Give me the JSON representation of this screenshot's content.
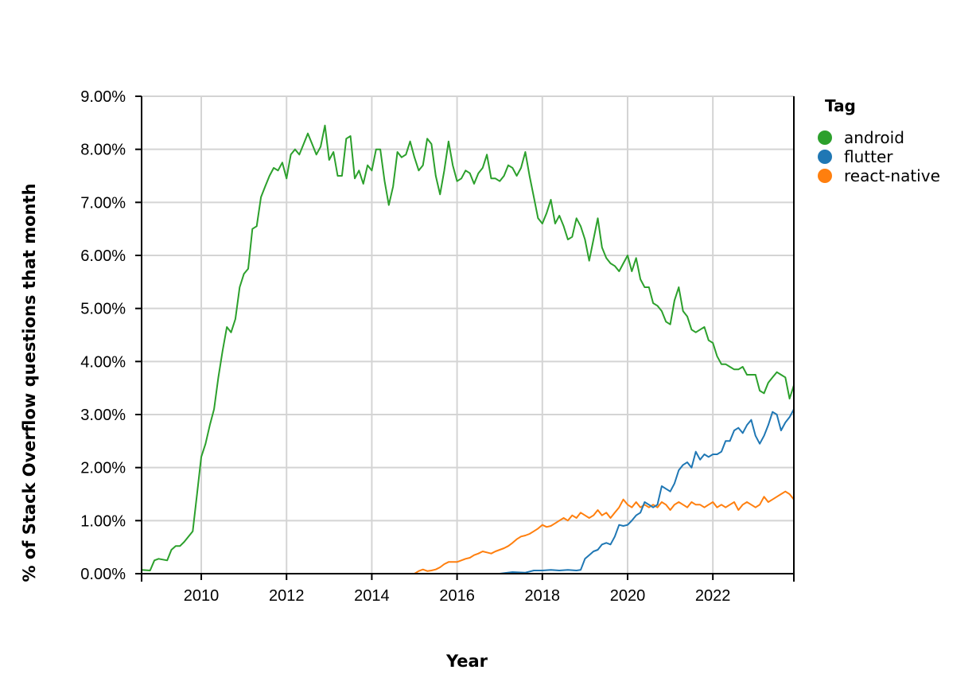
{
  "chart_data": {
    "type": "line",
    "title": "",
    "xlabel": "Year",
    "ylabel": "% of Stack Overflow questions that month",
    "xlim": [
      2008.6,
      2023.9
    ],
    "ylim": [
      0,
      9
    ],
    "x_ticks": [
      2010,
      2012,
      2014,
      2016,
      2018,
      2020,
      2022
    ],
    "x_tick_labels": [
      "2010",
      "2012",
      "2014",
      "2016",
      "2018",
      "2020",
      "2022"
    ],
    "y_ticks": [
      0,
      1,
      2,
      3,
      4,
      5,
      6,
      7,
      8,
      9
    ],
    "y_tick_labels": [
      "0.00%",
      "1.00%",
      "2.00%",
      "3.00%",
      "4.00%",
      "5.00%",
      "6.00%",
      "7.00%",
      "8.00%",
      "9.00%"
    ],
    "grid": true,
    "legend": {
      "title": "Tag",
      "placement": "right"
    },
    "series": [
      {
        "name": "android",
        "color": "#2ca02c",
        "points": [
          [
            2008.6,
            0.07
          ],
          [
            2008.8,
            0.06
          ],
          [
            2008.9,
            0.25
          ],
          [
            2009.0,
            0.28
          ],
          [
            2009.2,
            0.25
          ],
          [
            2009.3,
            0.45
          ],
          [
            2009.4,
            0.52
          ],
          [
            2009.5,
            0.52
          ],
          [
            2009.6,
            0.6
          ],
          [
            2009.8,
            0.8
          ],
          [
            2009.9,
            1.5
          ],
          [
            2010.0,
            2.2
          ],
          [
            2010.1,
            2.45
          ],
          [
            2010.2,
            2.8
          ],
          [
            2010.3,
            3.1
          ],
          [
            2010.4,
            3.7
          ],
          [
            2010.5,
            4.2
          ],
          [
            2010.6,
            4.65
          ],
          [
            2010.7,
            4.55
          ],
          [
            2010.8,
            4.8
          ],
          [
            2010.9,
            5.4
          ],
          [
            2011.0,
            5.65
          ],
          [
            2011.1,
            5.75
          ],
          [
            2011.2,
            6.5
          ],
          [
            2011.3,
            6.55
          ],
          [
            2011.4,
            7.1
          ],
          [
            2011.5,
            7.3
          ],
          [
            2011.6,
            7.5
          ],
          [
            2011.7,
            7.65
          ],
          [
            2011.8,
            7.6
          ],
          [
            2011.9,
            7.75
          ],
          [
            2012.0,
            7.45
          ],
          [
            2012.1,
            7.9
          ],
          [
            2012.2,
            8.0
          ],
          [
            2012.3,
            7.9
          ],
          [
            2012.4,
            8.1
          ],
          [
            2012.5,
            8.3
          ],
          [
            2012.6,
            8.1
          ],
          [
            2012.7,
            7.9
          ],
          [
            2012.8,
            8.05
          ],
          [
            2012.9,
            8.45
          ],
          [
            2013.0,
            7.8
          ],
          [
            2013.1,
            7.95
          ],
          [
            2013.2,
            7.5
          ],
          [
            2013.3,
            7.5
          ],
          [
            2013.4,
            8.2
          ],
          [
            2013.5,
            8.25
          ],
          [
            2013.6,
            7.45
          ],
          [
            2013.7,
            7.6
          ],
          [
            2013.8,
            7.35
          ],
          [
            2013.9,
            7.7
          ],
          [
            2014.0,
            7.6
          ],
          [
            2014.1,
            8.0
          ],
          [
            2014.2,
            8.0
          ],
          [
            2014.3,
            7.4
          ],
          [
            2014.4,
            6.95
          ],
          [
            2014.5,
            7.3
          ],
          [
            2014.6,
            7.95
          ],
          [
            2014.7,
            7.85
          ],
          [
            2014.8,
            7.9
          ],
          [
            2014.9,
            8.15
          ],
          [
            2015.0,
            7.85
          ],
          [
            2015.1,
            7.6
          ],
          [
            2015.2,
            7.7
          ],
          [
            2015.3,
            8.2
          ],
          [
            2015.4,
            8.1
          ],
          [
            2015.5,
            7.5
          ],
          [
            2015.6,
            7.15
          ],
          [
            2015.7,
            7.6
          ],
          [
            2015.8,
            8.15
          ],
          [
            2015.9,
            7.7
          ],
          [
            2016.0,
            7.4
          ],
          [
            2016.1,
            7.45
          ],
          [
            2016.2,
            7.6
          ],
          [
            2016.3,
            7.55
          ],
          [
            2016.4,
            7.35
          ],
          [
            2016.5,
            7.55
          ],
          [
            2016.6,
            7.65
          ],
          [
            2016.7,
            7.9
          ],
          [
            2016.8,
            7.45
          ],
          [
            2016.9,
            7.45
          ],
          [
            2017.0,
            7.4
          ],
          [
            2017.1,
            7.5
          ],
          [
            2017.2,
            7.7
          ],
          [
            2017.3,
            7.65
          ],
          [
            2017.4,
            7.5
          ],
          [
            2017.5,
            7.65
          ],
          [
            2017.6,
            7.95
          ],
          [
            2017.7,
            7.5
          ],
          [
            2017.8,
            7.1
          ],
          [
            2017.9,
            6.7
          ],
          [
            2018.0,
            6.6
          ],
          [
            2018.1,
            6.8
          ],
          [
            2018.2,
            7.05
          ],
          [
            2018.3,
            6.6
          ],
          [
            2018.4,
            6.75
          ],
          [
            2018.5,
            6.55
          ],
          [
            2018.6,
            6.3
          ],
          [
            2018.7,
            6.35
          ],
          [
            2018.8,
            6.7
          ],
          [
            2018.9,
            6.55
          ],
          [
            2019.0,
            6.3
          ],
          [
            2019.1,
            5.9
          ],
          [
            2019.2,
            6.3
          ],
          [
            2019.3,
            6.7
          ],
          [
            2019.4,
            6.15
          ],
          [
            2019.5,
            5.95
          ],
          [
            2019.6,
            5.85
          ],
          [
            2019.7,
            5.8
          ],
          [
            2019.8,
            5.7
          ],
          [
            2019.9,
            5.85
          ],
          [
            2020.0,
            6.0
          ],
          [
            2020.1,
            5.7
          ],
          [
            2020.2,
            5.95
          ],
          [
            2020.3,
            5.55
          ],
          [
            2020.4,
            5.4
          ],
          [
            2020.5,
            5.4
          ],
          [
            2020.6,
            5.1
          ],
          [
            2020.7,
            5.05
          ],
          [
            2020.8,
            4.95
          ],
          [
            2020.9,
            4.75
          ],
          [
            2021.0,
            4.7
          ],
          [
            2021.1,
            5.15
          ],
          [
            2021.2,
            5.4
          ],
          [
            2021.3,
            4.95
          ],
          [
            2021.4,
            4.85
          ],
          [
            2021.5,
            4.6
          ],
          [
            2021.6,
            4.55
          ],
          [
            2021.7,
            4.6
          ],
          [
            2021.8,
            4.65
          ],
          [
            2021.9,
            4.4
          ],
          [
            2022.0,
            4.35
          ],
          [
            2022.1,
            4.1
          ],
          [
            2022.2,
            3.95
          ],
          [
            2022.3,
            3.95
          ],
          [
            2022.4,
            3.9
          ],
          [
            2022.5,
            3.85
          ],
          [
            2022.6,
            3.85
          ],
          [
            2022.7,
            3.9
          ],
          [
            2022.8,
            3.75
          ],
          [
            2022.9,
            3.75
          ],
          [
            2023.0,
            3.75
          ],
          [
            2023.1,
            3.45
          ],
          [
            2023.2,
            3.4
          ],
          [
            2023.3,
            3.6
          ],
          [
            2023.4,
            3.7
          ],
          [
            2023.5,
            3.8
          ],
          [
            2023.6,
            3.75
          ],
          [
            2023.7,
            3.7
          ],
          [
            2023.8,
            3.3
          ],
          [
            2023.9,
            3.55
          ]
        ]
      },
      {
        "name": "flutter",
        "color": "#1f77b4",
        "points": [
          [
            2008.6,
            0.0
          ],
          [
            2015.0,
            0.0
          ],
          [
            2016.5,
            0.0
          ],
          [
            2017.0,
            0.0
          ],
          [
            2017.3,
            0.03
          ],
          [
            2017.6,
            0.02
          ],
          [
            2017.8,
            0.06
          ],
          [
            2018.0,
            0.06
          ],
          [
            2018.2,
            0.07
          ],
          [
            2018.4,
            0.06
          ],
          [
            2018.6,
            0.07
          ],
          [
            2018.8,
            0.06
          ],
          [
            2018.9,
            0.07
          ],
          [
            2019.0,
            0.28
          ],
          [
            2019.1,
            0.35
          ],
          [
            2019.2,
            0.42
          ],
          [
            2019.3,
            0.45
          ],
          [
            2019.4,
            0.55
          ],
          [
            2019.5,
            0.58
          ],
          [
            2019.6,
            0.55
          ],
          [
            2019.7,
            0.7
          ],
          [
            2019.8,
            0.92
          ],
          [
            2019.9,
            0.9
          ],
          [
            2020.0,
            0.92
          ],
          [
            2020.1,
            1.0
          ],
          [
            2020.2,
            1.1
          ],
          [
            2020.3,
            1.15
          ],
          [
            2020.4,
            1.35
          ],
          [
            2020.5,
            1.3
          ],
          [
            2020.6,
            1.25
          ],
          [
            2020.7,
            1.3
          ],
          [
            2020.8,
            1.65
          ],
          [
            2020.9,
            1.6
          ],
          [
            2021.0,
            1.55
          ],
          [
            2021.1,
            1.7
          ],
          [
            2021.2,
            1.95
          ],
          [
            2021.3,
            2.05
          ],
          [
            2021.4,
            2.1
          ],
          [
            2021.5,
            2.0
          ],
          [
            2021.6,
            2.3
          ],
          [
            2021.7,
            2.15
          ],
          [
            2021.8,
            2.25
          ],
          [
            2021.9,
            2.2
          ],
          [
            2022.0,
            2.25
          ],
          [
            2022.1,
            2.25
          ],
          [
            2022.2,
            2.3
          ],
          [
            2022.3,
            2.5
          ],
          [
            2022.4,
            2.5
          ],
          [
            2022.5,
            2.7
          ],
          [
            2022.6,
            2.75
          ],
          [
            2022.7,
            2.65
          ],
          [
            2022.8,
            2.8
          ],
          [
            2022.9,
            2.9
          ],
          [
            2023.0,
            2.6
          ],
          [
            2023.1,
            2.45
          ],
          [
            2023.2,
            2.6
          ],
          [
            2023.3,
            2.8
          ],
          [
            2023.4,
            3.05
          ],
          [
            2023.5,
            3.0
          ],
          [
            2023.6,
            2.7
          ],
          [
            2023.7,
            2.85
          ],
          [
            2023.8,
            2.95
          ],
          [
            2023.9,
            3.1
          ]
        ]
      },
      {
        "name": "react-native",
        "color": "#ff7f0e",
        "points": [
          [
            2008.6,
            0.0
          ],
          [
            2015.0,
            0.0
          ],
          [
            2015.1,
            0.05
          ],
          [
            2015.2,
            0.08
          ],
          [
            2015.3,
            0.05
          ],
          [
            2015.4,
            0.06
          ],
          [
            2015.5,
            0.08
          ],
          [
            2015.6,
            0.12
          ],
          [
            2015.7,
            0.18
          ],
          [
            2015.8,
            0.22
          ],
          [
            2015.9,
            0.22
          ],
          [
            2016.0,
            0.22
          ],
          [
            2016.1,
            0.25
          ],
          [
            2016.2,
            0.28
          ],
          [
            2016.3,
            0.3
          ],
          [
            2016.4,
            0.35
          ],
          [
            2016.5,
            0.38
          ],
          [
            2016.6,
            0.42
          ],
          [
            2016.7,
            0.4
          ],
          [
            2016.8,
            0.38
          ],
          [
            2016.9,
            0.42
          ],
          [
            2017.0,
            0.45
          ],
          [
            2017.1,
            0.48
          ],
          [
            2017.2,
            0.52
          ],
          [
            2017.3,
            0.58
          ],
          [
            2017.4,
            0.65
          ],
          [
            2017.5,
            0.7
          ],
          [
            2017.6,
            0.72
          ],
          [
            2017.7,
            0.75
          ],
          [
            2017.8,
            0.8
          ],
          [
            2017.9,
            0.85
          ],
          [
            2018.0,
            0.92
          ],
          [
            2018.1,
            0.88
          ],
          [
            2018.2,
            0.9
          ],
          [
            2018.3,
            0.95
          ],
          [
            2018.4,
            1.0
          ],
          [
            2018.5,
            1.05
          ],
          [
            2018.6,
            1.0
          ],
          [
            2018.7,
            1.1
          ],
          [
            2018.8,
            1.05
          ],
          [
            2018.9,
            1.15
          ],
          [
            2019.0,
            1.1
          ],
          [
            2019.1,
            1.05
          ],
          [
            2019.2,
            1.1
          ],
          [
            2019.3,
            1.2
          ],
          [
            2019.4,
            1.1
          ],
          [
            2019.5,
            1.15
          ],
          [
            2019.6,
            1.05
          ],
          [
            2019.7,
            1.15
          ],
          [
            2019.8,
            1.25
          ],
          [
            2019.9,
            1.4
          ],
          [
            2020.0,
            1.3
          ],
          [
            2020.1,
            1.25
          ],
          [
            2020.2,
            1.35
          ],
          [
            2020.3,
            1.25
          ],
          [
            2020.4,
            1.3
          ],
          [
            2020.5,
            1.25
          ],
          [
            2020.6,
            1.3
          ],
          [
            2020.7,
            1.25
          ],
          [
            2020.8,
            1.35
          ],
          [
            2020.9,
            1.3
          ],
          [
            2021.0,
            1.2
          ],
          [
            2021.1,
            1.3
          ],
          [
            2021.2,
            1.35
          ],
          [
            2021.3,
            1.3
          ],
          [
            2021.4,
            1.25
          ],
          [
            2021.5,
            1.35
          ],
          [
            2021.6,
            1.3
          ],
          [
            2021.7,
            1.3
          ],
          [
            2021.8,
            1.25
          ],
          [
            2021.9,
            1.3
          ],
          [
            2022.0,
            1.35
          ],
          [
            2022.1,
            1.25
          ],
          [
            2022.2,
            1.3
          ],
          [
            2022.3,
            1.25
          ],
          [
            2022.4,
            1.3
          ],
          [
            2022.5,
            1.35
          ],
          [
            2022.6,
            1.2
          ],
          [
            2022.7,
            1.3
          ],
          [
            2022.8,
            1.35
          ],
          [
            2022.9,
            1.3
          ],
          [
            2023.0,
            1.25
          ],
          [
            2023.1,
            1.3
          ],
          [
            2023.2,
            1.45
          ],
          [
            2023.3,
            1.35
          ],
          [
            2023.4,
            1.4
          ],
          [
            2023.5,
            1.45
          ],
          [
            2023.6,
            1.5
          ],
          [
            2023.7,
            1.55
          ],
          [
            2023.8,
            1.5
          ],
          [
            2023.9,
            1.4
          ]
        ]
      }
    ]
  }
}
